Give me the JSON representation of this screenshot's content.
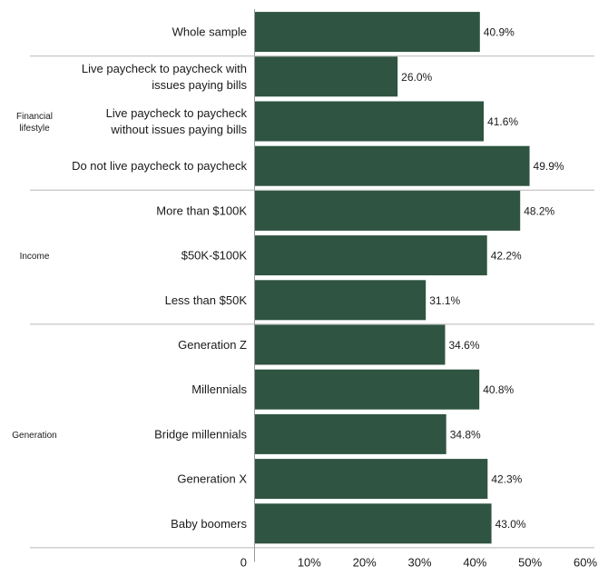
{
  "chart_data": {
    "type": "bar",
    "orientation": "horizontal",
    "bar_color": "#2f5441",
    "xlim": [
      0,
      60
    ],
    "x_ticks": [
      "0",
      "10%",
      "20%",
      "30%",
      "40%",
      "50%",
      "60%"
    ],
    "groups": [
      {
        "name": "",
        "items": [
          {
            "label": [
              "Whole sample"
            ],
            "value": 40.9,
            "value_label": "40.9%"
          }
        ]
      },
      {
        "name": [
          "Financial",
          "lifestyle"
        ],
        "items": [
          {
            "label": [
              "Live paycheck to paycheck with",
              "issues paying bills"
            ],
            "value": 26.0,
            "value_label": "26.0%"
          },
          {
            "label": [
              "Live paycheck to paycheck",
              "without issues paying bills"
            ],
            "value": 41.6,
            "value_label": "41.6%"
          },
          {
            "label": [
              "Do not live paycheck to paycheck"
            ],
            "value": 49.9,
            "value_label": "49.9%"
          }
        ]
      },
      {
        "name": [
          "Income"
        ],
        "items": [
          {
            "label": [
              "More than $100K"
            ],
            "value": 48.2,
            "value_label": "48.2%"
          },
          {
            "label": [
              "$50K-$100K"
            ],
            "value": 42.2,
            "value_label": "42.2%"
          },
          {
            "label": [
              "Less than $50K"
            ],
            "value": 31.1,
            "value_label": "31.1%"
          }
        ]
      },
      {
        "name": [
          "Generation"
        ],
        "items": [
          {
            "label": [
              "Generation Z"
            ],
            "value": 34.6,
            "value_label": "34.6%"
          },
          {
            "label": [
              "Millennials"
            ],
            "value": 40.8,
            "value_label": "40.8%"
          },
          {
            "label": [
              "Bridge millennials"
            ],
            "value": 34.8,
            "value_label": "34.8%"
          },
          {
            "label": [
              "Generation X"
            ],
            "value": 42.3,
            "value_label": "42.3%"
          },
          {
            "label": [
              "Baby boomers"
            ],
            "value": 43.0,
            "value_label": "43.0%"
          }
        ]
      }
    ]
  }
}
